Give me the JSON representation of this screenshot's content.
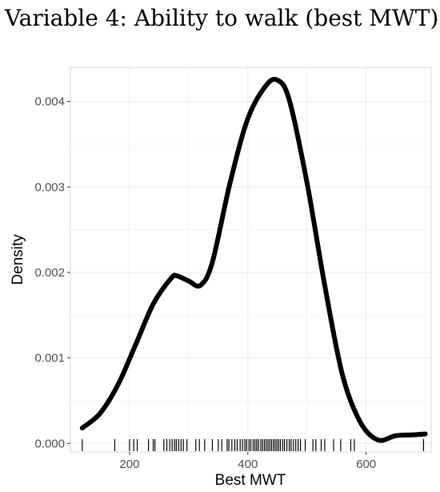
{
  "chart_data": {
    "type": "line",
    "title": "Variable 4: Ability to walk (best MWT)",
    "xlabel": "Best MWT",
    "ylabel": "Density",
    "xlim": [
      100,
      710
    ],
    "ylim": [
      -0.0001,
      0.0044
    ],
    "x_ticks": [
      200,
      400,
      600
    ],
    "x_tick_labels": [
      "200",
      "400",
      "600"
    ],
    "y_ticks": [
      0,
      0.001,
      0.002,
      0.003,
      0.004
    ],
    "y_tick_labels": [
      "0.000",
      "0.001",
      "0.002",
      "0.003",
      "0.004"
    ],
    "grid": true,
    "legend": "none",
    "series": [
      {
        "color": "#000000",
        "x": [
          120,
          150,
          180,
          210,
          240,
          270,
          280,
          300,
          320,
          340,
          370,
          400,
          430,
          450,
          470,
          500,
          530,
          560,
          590,
          620,
          650,
          680,
          700
        ],
        "y": [
          0.00018,
          0.00035,
          0.00068,
          0.00115,
          0.00163,
          0.00193,
          0.00196,
          0.0019,
          0.00185,
          0.00212,
          0.00305,
          0.0038,
          0.00418,
          0.00425,
          0.00402,
          0.00305,
          0.00185,
          0.0008,
          0.00025,
          4e-05,
          9e-05,
          0.0001,
          0.00011
        ]
      }
    ],
    "rug": [
      120,
      175,
      200,
      207,
      213,
      232,
      240,
      243,
      258,
      263,
      268,
      272,
      276,
      279,
      283,
      287,
      291,
      297,
      312,
      318,
      327,
      340,
      350,
      356,
      365,
      368,
      373,
      378,
      382,
      387,
      391,
      395,
      398,
      402,
      405,
      409,
      412,
      415,
      418,
      422,
      425,
      428,
      431,
      434,
      437,
      440,
      443,
      446,
      449,
      452,
      455,
      459,
      462,
      466,
      470,
      473,
      477,
      481,
      485,
      489,
      497,
      510,
      515,
      524,
      530,
      545,
      557,
      574,
      580,
      697
    ]
  }
}
